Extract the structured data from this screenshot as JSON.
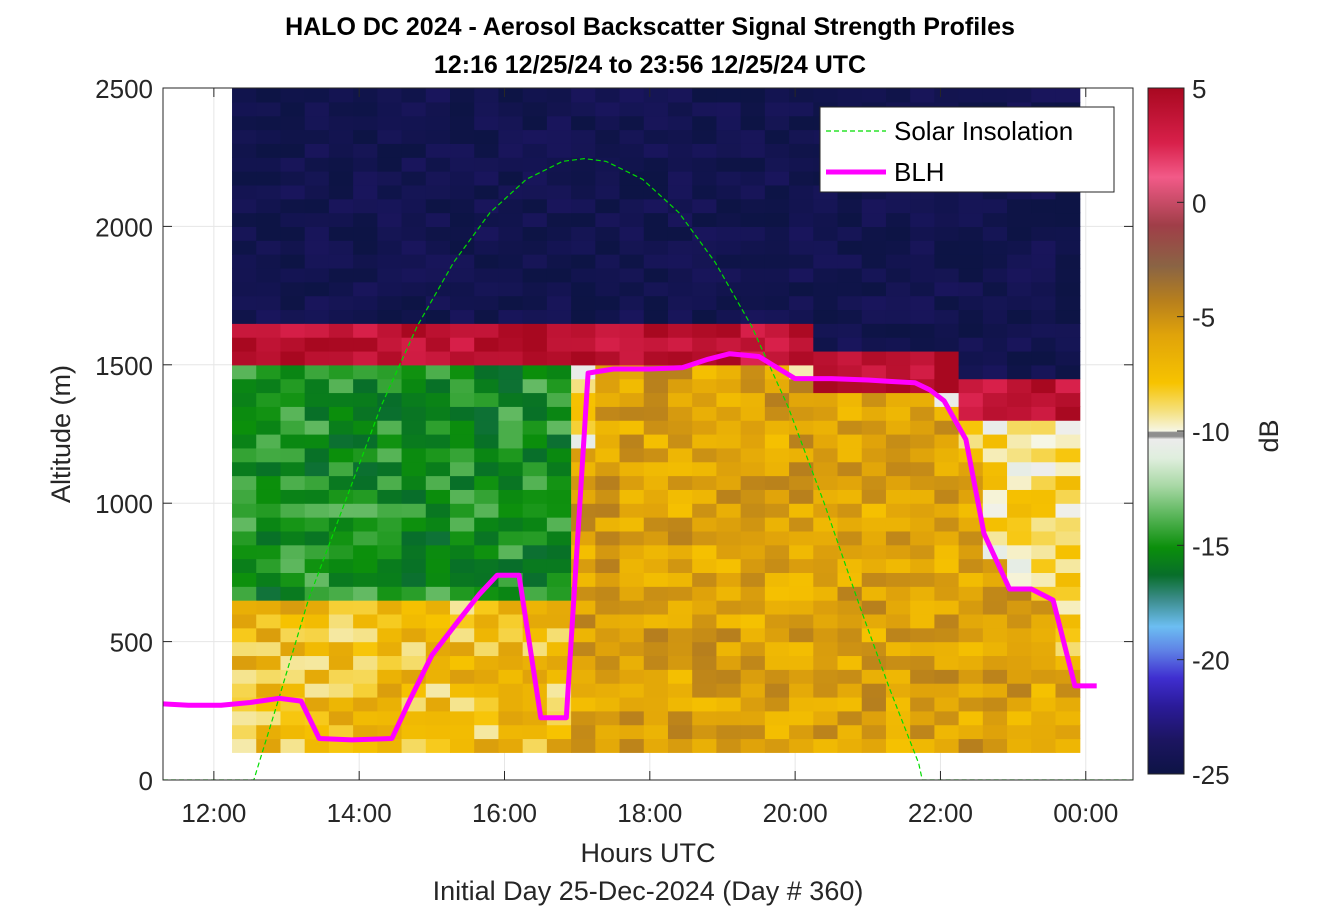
{
  "chart_data": {
    "type": "heatmap",
    "title": "HALO DC 2024 - Aerosol Backscatter Signal Strength Profiles",
    "subtitle": "12:16 12/25/24 to 23:56 12/25/24  UTC",
    "xlabel": "Hours UTC",
    "footer": "Initial Day 25-Dec-2024 (Day # 360)",
    "ylabel": "Altitude (m)",
    "colorbar_label": "dB",
    "xlim": [
      11.3,
      24.65
    ],
    "ylim": [
      0,
      2500
    ],
    "xticks": [
      12,
      14,
      16,
      18,
      20,
      22,
      24
    ],
    "xtick_labels": [
      "12:00",
      "14:00",
      "16:00",
      "18:00",
      "20:00",
      "22:00",
      "00:00"
    ],
    "yticks": [
      0,
      500,
      1000,
      1500,
      2000,
      2500
    ],
    "ytick_labels": [
      "0",
      "500",
      "1000",
      "1500",
      "2000",
      "2500"
    ],
    "clim": [
      -25,
      5
    ],
    "cticks": [
      5,
      0,
      -5,
      -10,
      -15,
      -20,
      -25
    ],
    "ctick_labels": [
      "5",
      "0",
      "-5",
      "-10",
      "-15",
      "-20",
      "-25"
    ],
    "grid": true,
    "legend": {
      "position": "top-right",
      "entries": [
        {
          "label": "Solar Insolation",
          "color": "#00dd00",
          "style": "dashed"
        },
        {
          "label": "BLH",
          "color": "#ff00ff",
          "style": "solid"
        }
      ]
    },
    "heatmap": {
      "time_start": 12.25,
      "time_end": 23.95,
      "bin_minutes": 20,
      "altitude_start": 100,
      "altitude_bin": 50,
      "altitude_end": 2500
    },
    "series": [
      {
        "name": "BLH",
        "color": "#ff00ff",
        "x": [
          11.3,
          11.65,
          12.1,
          12.5,
          12.9,
          13.2,
          13.45,
          13.9,
          14.45,
          14.7,
          15.0,
          15.35,
          15.65,
          15.9,
          16.2,
          16.5,
          16.85,
          17.15,
          17.5,
          18.0,
          18.45,
          18.8,
          19.1,
          19.5,
          19.75,
          20.0,
          20.5,
          21.0,
          21.3,
          21.65,
          21.85,
          22.05,
          22.35,
          22.6,
          22.95,
          23.25,
          23.55,
          23.85,
          24.15,
          24.4,
          24.65
        ],
        "y": [
          275,
          270,
          270,
          280,
          295,
          285,
          150,
          145,
          150,
          290,
          450,
          570,
          670,
          740,
          740,
          225,
          225,
          1470,
          1485,
          1485,
          1490,
          1520,
          1540,
          1530,
          1490,
          1450,
          1450,
          1445,
          1440,
          1435,
          1410,
          1370,
          1230,
          890,
          690,
          690,
          650,
          340,
          340,
          null,
          310
        ]
      },
      {
        "name": "Solar Insolation",
        "color": "#00dd00",
        "x": [
          11.3,
          12.4,
          12.55,
          12.9,
          13.3,
          13.8,
          14.3,
          14.8,
          15.3,
          15.8,
          16.3,
          16.8,
          17.1,
          17.4,
          17.9,
          18.4,
          18.9,
          19.4,
          19.9,
          20.4,
          20.9,
          21.3,
          21.7,
          21.75,
          24.65
        ],
        "y": [
          0,
          0,
          0,
          300,
          650,
          1000,
          1350,
          1640,
          1870,
          2050,
          2170,
          2235,
          2245,
          2235,
          2170,
          2050,
          1870,
          1640,
          1350,
          1000,
          620,
          330,
          60,
          0,
          0
        ]
      }
    ]
  }
}
